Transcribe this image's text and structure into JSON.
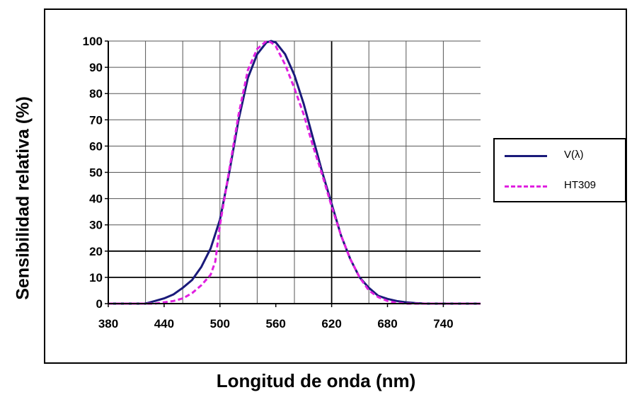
{
  "chart_data": {
    "type": "line",
    "xlabel": "Longitud de onda (nm)",
    "ylabel": "Sensibilidad relativa (%)",
    "xlim": [
      380,
      780
    ],
    "ylim": [
      0,
      100
    ],
    "x_ticks": [
      380,
      440,
      500,
      560,
      620,
      680,
      740
    ],
    "y_ticks": [
      0,
      10,
      20,
      30,
      40,
      50,
      60,
      70,
      80,
      90,
      100
    ],
    "grid": true,
    "legend_position": "right",
    "series": [
      {
        "name": "V(λ)",
        "color": "#1a1a7a",
        "style": "solid",
        "x": [
          380,
          420,
          430,
          440,
          450,
          460,
          470,
          480,
          490,
          500,
          510,
          520,
          530,
          540,
          550,
          555,
          560,
          570,
          580,
          590,
          600,
          610,
          620,
          630,
          640,
          650,
          660,
          670,
          680,
          690,
          700,
          710,
          720,
          780
        ],
        "y": [
          0,
          0,
          1,
          2,
          3.5,
          6,
          9,
          14,
          21,
          32,
          50,
          70,
          86,
          95,
          99.5,
          100,
          99.5,
          95,
          87,
          76,
          63,
          50,
          38,
          26,
          17,
          10,
          6,
          3,
          1.8,
          1,
          0.5,
          0.2,
          0,
          0
        ]
      },
      {
        "name": "HT309",
        "color": "#e020e0",
        "style": "dashed",
        "x": [
          380,
          430,
          440,
          450,
          460,
          470,
          480,
          490,
          495,
          500,
          510,
          520,
          530,
          540,
          550,
          555,
          560,
          570,
          580,
          590,
          600,
          610,
          620,
          630,
          640,
          650,
          660,
          670,
          680,
          690,
          700,
          780
        ],
        "y": [
          0,
          0,
          0.5,
          1,
          2,
          4,
          7,
          11,
          16,
          30,
          51,
          72,
          89,
          97,
          100,
          99.5,
          98,
          91,
          82,
          72,
          60,
          49,
          37,
          26,
          17,
          10,
          5,
          2.5,
          1,
          0.3,
          0,
          0
        ]
      }
    ]
  }
}
